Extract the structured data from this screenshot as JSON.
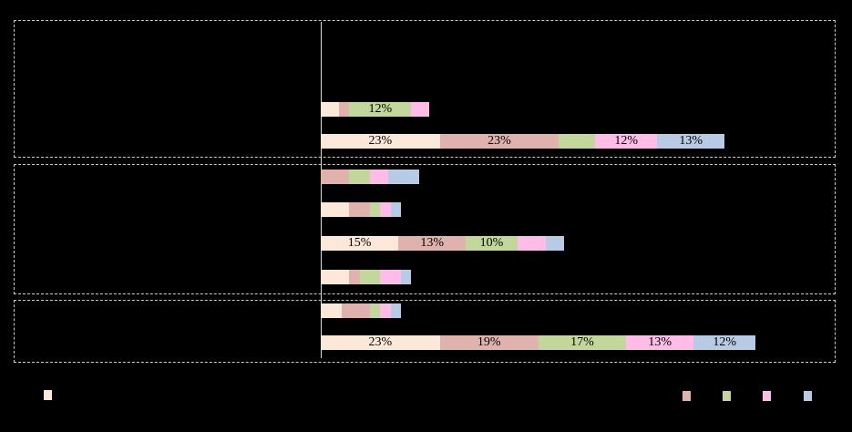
{
  "chart_data": {
    "type": "bar",
    "subtype": "horizontal-stacked",
    "orientation": "horizontal",
    "background_color": "#000000",
    "frame_color": "#cccccc",
    "axis_line_color": "#dddddd",
    "data_label_color": "#000000",
    "axis_range_pct": [
      0,
      100
    ],
    "grid": "off",
    "series": [
      {
        "key": "cream",
        "color": "#FBE8D9"
      },
      {
        "key": "rose",
        "color": "#E0B2AE"
      },
      {
        "key": "green",
        "color": "#C3D69B"
      },
      {
        "key": "pink",
        "color": "#FFBCE6"
      },
      {
        "key": "blue",
        "color": "#B7CCE4"
      }
    ],
    "groups": [
      {
        "bars": [
          {
            "values": [
              3.5,
              2,
              12,
              3.5,
              0
            ],
            "labels": [
              "",
              "",
              "12%",
              "",
              ""
            ]
          },
          {
            "values": [
              23,
              23,
              7,
              12,
              13
            ],
            "labels": [
              "23%",
              "23%",
              "",
              "12%",
              "13%"
            ]
          }
        ]
      },
      {
        "bars": [
          {
            "values": [
              0,
              5.5,
              4,
              3.5,
              6
            ],
            "labels": [
              "",
              "",
              "",
              "",
              ""
            ]
          },
          {
            "values": [
              5.5,
              4,
              2,
              2,
              2
            ],
            "labels": [
              "",
              "",
              "",
              "",
              ""
            ]
          },
          {
            "values": [
              15,
              13,
              10,
              5.5,
              3.5
            ],
            "labels": [
              "15%",
              "13%",
              "10%",
              "",
              ""
            ]
          },
          {
            "values": [
              5.5,
              2,
              4,
              4,
              2
            ],
            "labels": [
              "",
              "",
              "",
              "",
              ""
            ]
          }
        ]
      },
      {
        "bars": [
          {
            "values": [
              4,
              5.5,
              2,
              2,
              2
            ],
            "labels": [
              "",
              "",
              "",
              "",
              ""
            ]
          },
          {
            "values": [
              23,
              19,
              17,
              13,
              12
            ],
            "labels": [
              "23%",
              "19%",
              "17%",
              "13%",
              "12%"
            ]
          }
        ]
      }
    ],
    "legend": {
      "left_swatch_series": "cream",
      "right_swatch_series": [
        "rose",
        "green",
        "pink",
        "blue"
      ]
    }
  }
}
